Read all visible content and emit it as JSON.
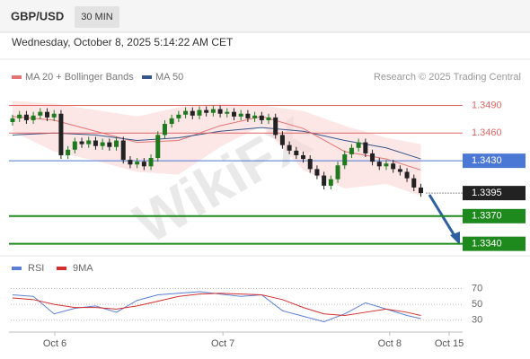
{
  "header": {
    "symbol": "GBP/USD",
    "timeframe": "30 MIN",
    "datetime": "Wednesday, October 8, 2025 5:14:22 AM CET"
  },
  "watermark": "WikiFX",
  "chart_data": [
    {
      "type": "candlestick",
      "credit": "Research © 2025 Trading Central",
      "x": [
        0,
        1,
        2,
        3,
        4,
        5,
        6,
        7,
        8,
        9,
        10,
        11,
        12,
        13,
        14,
        15,
        16,
        17,
        18,
        19,
        20,
        21,
        22,
        23,
        24,
        25,
        26,
        27,
        28,
        29,
        30,
        31,
        32,
        33,
        34,
        35,
        36,
        37,
        38,
        39,
        40,
        41,
        42,
        43,
        44,
        45,
        46,
        47,
        48,
        49,
        50,
        51,
        52,
        53,
        54,
        55,
        56,
        57,
        58,
        59
      ],
      "open": [
        1.3472,
        1.3476,
        1.348,
        1.3474,
        1.3479,
        1.3483,
        1.3477,
        1.3481,
        1.3436,
        1.3442,
        1.3451,
        1.3448,
        1.3452,
        1.3446,
        1.345,
        1.3445,
        1.3452,
        1.3431,
        1.3426,
        1.3429,
        1.3424,
        1.3433,
        1.3458,
        1.347,
        1.3476,
        1.348,
        1.3484,
        1.3479,
        1.3485,
        1.3482,
        1.3486,
        1.3481,
        1.3483,
        1.3478,
        1.3481,
        1.3476,
        1.3479,
        1.3474,
        1.3477,
        1.3458,
        1.3447,
        1.3441,
        1.3436,
        1.3432,
        1.3421,
        1.3414,
        1.3403,
        1.341,
        1.3425,
        1.3437,
        1.3444,
        1.345,
        1.3438,
        1.3429,
        1.3424,
        1.3427,
        1.3421,
        1.3418,
        1.3411,
        1.3401
      ],
      "high": [
        1.348,
        1.3484,
        1.3484,
        1.3483,
        1.3487,
        1.3487,
        1.3485,
        1.3485,
        1.3446,
        1.3455,
        1.3455,
        1.3456,
        1.3456,
        1.3454,
        1.3454,
        1.3456,
        1.3456,
        1.3435,
        1.3433,
        1.3433,
        1.3437,
        1.3462,
        1.3474,
        1.348,
        1.3484,
        1.3488,
        1.3488,
        1.3489,
        1.3489,
        1.349,
        1.349,
        1.3487,
        1.3487,
        1.3485,
        1.3485,
        1.3483,
        1.3483,
        1.3481,
        1.3481,
        1.3462,
        1.3451,
        1.3445,
        1.344,
        1.3436,
        1.3425,
        1.3418,
        1.3414,
        1.3429,
        1.3441,
        1.3448,
        1.3454,
        1.3454,
        1.3442,
        1.3433,
        1.3431,
        1.3431,
        1.3425,
        1.3422,
        1.3415,
        1.3405
      ],
      "low": [
        1.3468,
        1.3472,
        1.347,
        1.347,
        1.3475,
        1.3473,
        1.3473,
        1.3432,
        1.3432,
        1.3438,
        1.3444,
        1.3444,
        1.3442,
        1.3442,
        1.3441,
        1.3441,
        1.3427,
        1.3422,
        1.3422,
        1.342,
        1.342,
        1.3429,
        1.3454,
        1.3466,
        1.3472,
        1.3476,
        1.3475,
        1.3475,
        1.3478,
        1.3478,
        1.3477,
        1.3477,
        1.3474,
        1.3474,
        1.3472,
        1.3472,
        1.347,
        1.347,
        1.3454,
        1.3443,
        1.3437,
        1.3432,
        1.3428,
        1.3417,
        1.341,
        1.3399,
        1.3399,
        1.3406,
        1.3421,
        1.3433,
        1.344,
        1.3434,
        1.3425,
        1.342,
        1.342,
        1.3417,
        1.3414,
        1.3407,
        1.3397,
        1.3391
      ],
      "close": [
        1.3476,
        1.348,
        1.3474,
        1.3479,
        1.3483,
        1.3477,
        1.3481,
        1.3436,
        1.3442,
        1.3451,
        1.3448,
        1.3452,
        1.3446,
        1.345,
        1.3445,
        1.3452,
        1.3431,
        1.3426,
        1.3429,
        1.3424,
        1.3433,
        1.3458,
        1.347,
        1.3476,
        1.348,
        1.3484,
        1.3479,
        1.3485,
        1.3482,
        1.3486,
        1.3481,
        1.3483,
        1.3478,
        1.3481,
        1.3476,
        1.3479,
        1.3474,
        1.3477,
        1.3458,
        1.3447,
        1.3441,
        1.3436,
        1.3432,
        1.3421,
        1.3414,
        1.3403,
        1.341,
        1.3425,
        1.3437,
        1.3444,
        1.345,
        1.3438,
        1.3429,
        1.3424,
        1.3427,
        1.3421,
        1.3418,
        1.3411,
        1.3401,
        1.3395
      ],
      "up_color": "#1f7a1f",
      "down_color": "#222222",
      "series": [
        {
          "name": "MA 20 + Bollinger Bands",
          "color": "#e57373",
          "band_color": "#fbd5d5",
          "x": [
            0,
            6,
            12,
            18,
            24,
            30,
            36,
            42,
            48,
            54,
            59
          ],
          "values": [
            1.3478,
            1.3474,
            1.3462,
            1.345,
            1.3452,
            1.3468,
            1.3478,
            1.3465,
            1.344,
            1.3432,
            1.342
          ],
          "upper": [
            1.3495,
            1.3492,
            1.3485,
            1.3478,
            1.3488,
            1.3492,
            1.349,
            1.3484,
            1.3468,
            1.3455,
            1.3448
          ],
          "lower": [
            1.3462,
            1.344,
            1.343,
            1.3418,
            1.3415,
            1.3445,
            1.3468,
            1.342,
            1.34,
            1.3405,
            1.3392
          ]
        },
        {
          "name": "MA 50",
          "color": "#34568b",
          "x": [
            0,
            6,
            12,
            18,
            24,
            30,
            36,
            42,
            48,
            54,
            59
          ],
          "values": [
            1.3458,
            1.346,
            1.3458,
            1.3452,
            1.3455,
            1.3462,
            1.3466,
            1.3462,
            1.3452,
            1.3444,
            1.3432
          ]
        }
      ],
      "levels": [
        {
          "value": 1.349,
          "label": "1.3490",
          "color": "#e06666",
          "box": false,
          "dotted": false
        },
        {
          "value": 1.346,
          "label": "1.3460",
          "color": "#e06666",
          "box": false,
          "dotted": false
        },
        {
          "value": 1.343,
          "label": "1.3430",
          "color": "#4a78d4",
          "box": true,
          "dotted": false
        },
        {
          "value": 1.3395,
          "label": "1.3395",
          "color": "#222222",
          "box": true,
          "dotted": true
        },
        {
          "value": 1.337,
          "label": "1.3370",
          "color": "#1e8a1e",
          "box": true,
          "dotted": false
        },
        {
          "value": 1.334,
          "label": "1.3340",
          "color": "#1e8a1e",
          "box": true,
          "dotted": false
        }
      ],
      "xlim": [
        -0.26,
        65.3
      ],
      "ylim": [
        1.3327,
        1.3507
      ]
    },
    {
      "type": "line",
      "x": [
        0,
        3,
        6,
        9,
        12,
        15,
        18,
        21,
        24,
        27,
        30,
        33,
        36,
        39,
        42,
        45,
        48,
        51,
        54,
        57,
        59
      ],
      "series": [
        {
          "name": "RSI",
          "color": "#5b7fd4",
          "values": [
            62,
            60,
            38,
            45,
            48,
            40,
            55,
            62,
            64,
            66,
            63,
            60,
            62,
            42,
            35,
            28,
            38,
            52,
            44,
            36,
            32
          ]
        },
        {
          "name": "9MA",
          "color": "#d32f2f",
          "values": [
            58,
            56,
            50,
            46,
            46,
            44,
            48,
            54,
            60,
            63,
            64,
            63,
            62,
            56,
            46,
            38,
            36,
            40,
            44,
            40,
            36
          ]
        }
      ],
      "xlim": [
        -0.26,
        65.3
      ],
      "ylim": [
        15,
        100
      ],
      "yticks": [
        70,
        50,
        30
      ],
      "grid": true,
      "xticks": [
        {
          "value": 6.1,
          "label": "Oct 6"
        },
        {
          "value": 30.4,
          "label": "Oct 7"
        },
        {
          "value": 54.5,
          "label": "Oct 8"
        },
        {
          "value": 63.1,
          "label": "Oct 15"
        }
      ]
    }
  ]
}
